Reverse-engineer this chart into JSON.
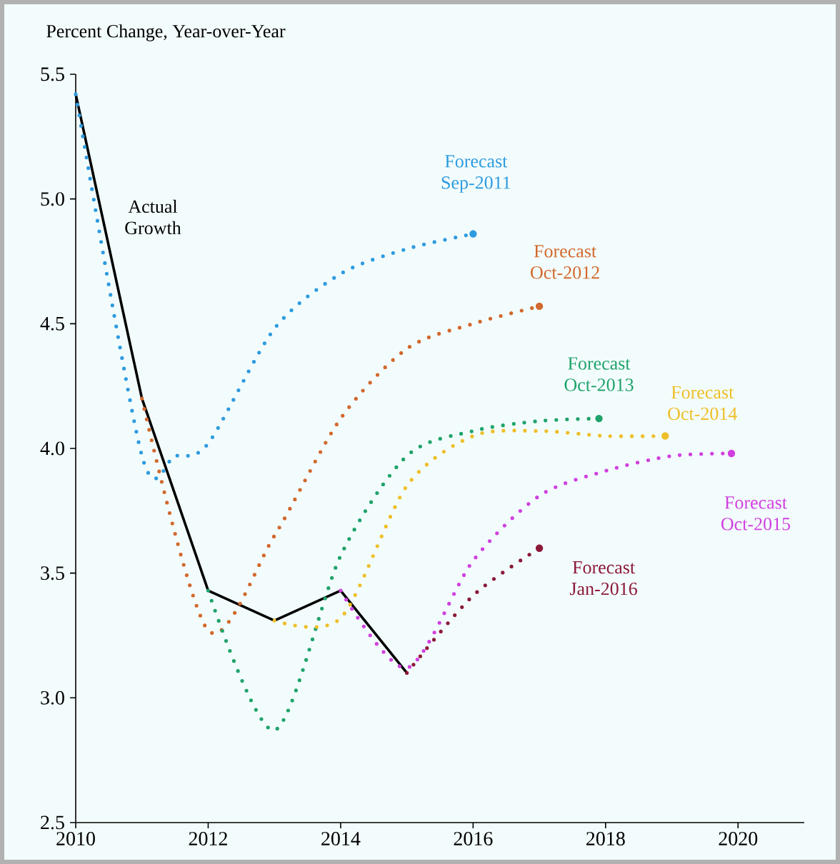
{
  "chart_data": {
    "type": "line",
    "ylabel": "Percent Change, Year-over-Year",
    "xlim": [
      2010,
      2021
    ],
    "xticks": [
      2010,
      2012,
      2014,
      2016,
      2018,
      2020
    ],
    "ylim": [
      2.5,
      5.5
    ],
    "yticks": [
      2.5,
      {
        "value": 3,
        "label": "3.0"
      },
      3.5,
      {
        "value": 4,
        "label": "4.0"
      },
      4.5,
      {
        "value": 5,
        "label": "5.0"
      },
      5.5
    ],
    "series": [
      {
        "name": "Actual Growth",
        "color": "#000000",
        "line_style": "solid",
        "x": [
          2010,
          2011,
          2012,
          2013,
          2014,
          2015
        ],
        "values": [
          5.42,
          4.2,
          3.43,
          3.31,
          3.43,
          3.1
        ]
      },
      {
        "name": "Forecast Sep-2011",
        "color": "#2e9be0",
        "line_style": "dotted",
        "x": [
          2010,
          2011,
          2011.5,
          2012,
          2013,
          2014,
          2015,
          2016
        ],
        "values": [
          5.42,
          3.97,
          3.97,
          4.02,
          4.48,
          4.7,
          4.8,
          4.86
        ]
      },
      {
        "name": "Forecast Oct-2012",
        "color": "#d2692e",
        "line_style": "dotted",
        "x": [
          2011,
          2012,
          2013,
          2014,
          2015,
          2016,
          2017
        ],
        "values": [
          4.2,
          3.27,
          3.65,
          4.12,
          4.4,
          4.5,
          4.57
        ]
      },
      {
        "name": "Forecast Oct-2013",
        "color": "#1fa36b",
        "line_style": "dotted",
        "x": [
          2012,
          2013,
          2014,
          2015,
          2016,
          2017,
          2017.9
        ],
        "values": [
          3.43,
          2.87,
          3.57,
          3.97,
          4.07,
          4.11,
          4.12
        ]
      },
      {
        "name": "Forecast Oct-2014",
        "color": "#eebf2a",
        "line_style": "dotted",
        "x": [
          2013,
          2014,
          2015,
          2016,
          2017,
          2018,
          2018.9
        ],
        "values": [
          3.31,
          3.32,
          3.85,
          4.05,
          4.07,
          4.05,
          4.05
        ]
      },
      {
        "name": "Forecast Oct-2015",
        "color": "#d040e0",
        "line_style": "dotted",
        "x": [
          2014,
          2015,
          2016,
          2017,
          2018,
          2019,
          2019.9
        ],
        "values": [
          3.43,
          3.12,
          3.55,
          3.81,
          3.91,
          3.97,
          3.98
        ]
      },
      {
        "name": "Forecast Jan-2016",
        "color": "#8b1a3a",
        "line_style": "dotted",
        "x": [
          2015,
          2016,
          2017
        ],
        "values": [
          3.1,
          3.41,
          3.6
        ]
      }
    ]
  }
}
